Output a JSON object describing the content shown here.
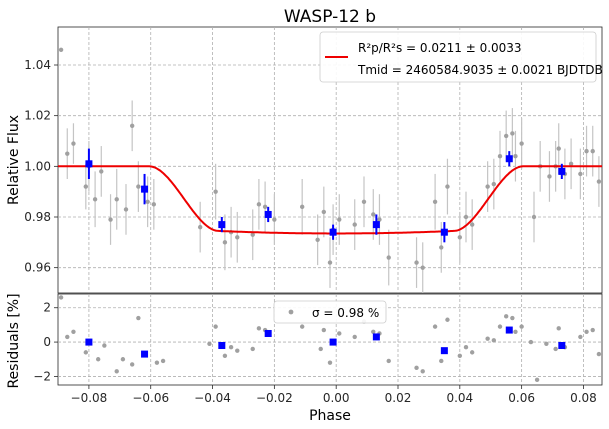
{
  "chart_data": [
    {
      "type": "scatter",
      "panel": "light-curve",
      "title": "WASP-12 b",
      "xlabel": "",
      "ylabel": "Relative Flux",
      "xlim": [
        -0.09,
        0.086
      ],
      "ylim": [
        0.95,
        1.055
      ],
      "yticks": [
        0.96,
        0.98,
        1.0,
        1.02,
        1.04
      ],
      "ytick_labels": [
        "0.96",
        "0.98",
        "1.00",
        "1.02",
        "1.04"
      ],
      "grid": true,
      "legend_position": "top-right",
      "legend": {
        "model_line_1": "R²p/R²s = 0.0211 ± 0.0033",
        "model_line_2": "Tmid = 2460584.9035 ± 0.0021 BJDTDB"
      },
      "colors": {
        "raw": "#a0a0a0",
        "binned": "#0000ff",
        "model": "#ee0000",
        "grid": "#b0b0b0"
      },
      "raw_points": [
        {
          "x": -0.089,
          "y": 1.046,
          "e": 0.0
        },
        {
          "x": -0.087,
          "y": 1.005,
          "e": 0.01
        },
        {
          "x": -0.085,
          "y": 1.009,
          "e": 0.008
        },
        {
          "x": -0.081,
          "y": 0.992,
          "e": 0.009
        },
        {
          "x": -0.08,
          "y": 1.0,
          "e": 0.01
        },
        {
          "x": -0.078,
          "y": 0.987,
          "e": 0.011
        },
        {
          "x": -0.076,
          "y": 0.998,
          "e": 0.01
        },
        {
          "x": -0.073,
          "y": 0.979,
          "e": 0.01
        },
        {
          "x": -0.071,
          "y": 0.987,
          "e": 0.012
        },
        {
          "x": -0.068,
          "y": 0.983,
          "e": 0.01
        },
        {
          "x": -0.066,
          "y": 1.016,
          "e": 0.01
        },
        {
          "x": -0.064,
          "y": 0.992,
          "e": 0.01
        },
        {
          "x": -0.061,
          "y": 0.986,
          "e": 0.01
        },
        {
          "x": -0.059,
          "y": 0.985,
          "e": 0.01
        },
        {
          "x": -0.044,
          "y": 0.976,
          "e": 0.01
        },
        {
          "x": -0.039,
          "y": 0.99,
          "e": 0.011
        },
        {
          "x": -0.036,
          "y": 0.97,
          "e": 0.011
        },
        {
          "x": -0.034,
          "y": 0.974,
          "e": 0.01
        },
        {
          "x": -0.032,
          "y": 0.972,
          "e": 0.01
        },
        {
          "x": -0.027,
          "y": 0.973,
          "e": 0.01
        },
        {
          "x": -0.025,
          "y": 0.985,
          "e": 0.01
        },
        {
          "x": -0.023,
          "y": 0.984,
          "e": 0.01
        },
        {
          "x": -0.02,
          "y": 0.979,
          "e": 0.01
        },
        {
          "x": -0.011,
          "y": 0.984,
          "e": 0.011
        },
        {
          "x": -0.006,
          "y": 0.971,
          "e": 0.01
        },
        {
          "x": -0.004,
          "y": 0.982,
          "e": 0.01
        },
        {
          "x": -0.002,
          "y": 0.962,
          "e": 0.01
        },
        {
          "x": -0.001,
          "y": 0.975,
          "e": 0.01
        },
        {
          "x": 0.001,
          "y": 0.979,
          "e": 0.01
        },
        {
          "x": 0.006,
          "y": 0.977,
          "e": 0.01
        },
        {
          "x": 0.009,
          "y": 0.986,
          "e": 0.01
        },
        {
          "x": 0.012,
          "y": 0.981,
          "e": 0.01
        },
        {
          "x": 0.014,
          "y": 0.979,
          "e": 0.01
        },
        {
          "x": 0.017,
          "y": 0.964,
          "e": 0.011
        },
        {
          "x": 0.026,
          "y": 0.962,
          "e": 0.01
        },
        {
          "x": 0.028,
          "y": 0.96,
          "e": 0.01
        },
        {
          "x": 0.032,
          "y": 0.986,
          "e": 0.011
        },
        {
          "x": 0.034,
          "y": 0.968,
          "e": 0.01
        },
        {
          "x": 0.036,
          "y": 0.992,
          "e": 0.011
        },
        {
          "x": 0.04,
          "y": 0.972,
          "e": 0.01
        },
        {
          "x": 0.042,
          "y": 0.98,
          "e": 0.01
        },
        {
          "x": 0.044,
          "y": 0.977,
          "e": 0.01
        },
        {
          "x": 0.049,
          "y": 0.992,
          "e": 0.01
        },
        {
          "x": 0.051,
          "y": 0.993,
          "e": 0.01
        },
        {
          "x": 0.053,
          "y": 1.004,
          "e": 0.01
        },
        {
          "x": 0.055,
          "y": 1.012,
          "e": 0.01
        },
        {
          "x": 0.057,
          "y": 1.013,
          "e": 0.01
        },
        {
          "x": 0.058,
          "y": 1.004,
          "e": 0.01
        },
        {
          "x": 0.06,
          "y": 1.009,
          "e": 0.01
        },
        {
          "x": 0.064,
          "y": 0.98,
          "e": 0.01
        },
        {
          "x": 0.066,
          "y": 1.0,
          "e": 0.01
        },
        {
          "x": 0.069,
          "y": 0.996,
          "e": 0.01
        },
        {
          "x": 0.071,
          "y": 1.0,
          "e": 0.01
        },
        {
          "x": 0.072,
          "y": 1.007,
          "e": 0.01
        },
        {
          "x": 0.074,
          "y": 0.997,
          "e": 0.01
        },
        {
          "x": 0.076,
          "y": 1.001,
          "e": 0.01
        },
        {
          "x": 0.079,
          "y": 0.997,
          "e": 0.01
        },
        {
          "x": 0.081,
          "y": 1.006,
          "e": 0.01
        },
        {
          "x": 0.083,
          "y": 1.006,
          "e": 0.01
        },
        {
          "x": 0.085,
          "y": 0.994,
          "e": 0.01
        }
      ],
      "binned_points": [
        {
          "x": -0.08,
          "y": 1.001,
          "e": 0.006
        },
        {
          "x": -0.062,
          "y": 0.991,
          "e": 0.006
        },
        {
          "x": -0.037,
          "y": 0.977,
          "e": 0.003
        },
        {
          "x": -0.022,
          "y": 0.981,
          "e": 0.003
        },
        {
          "x": -0.001,
          "y": 0.974,
          "e": 0.003
        },
        {
          "x": 0.013,
          "y": 0.977,
          "e": 0.004
        },
        {
          "x": 0.035,
          "y": 0.974,
          "e": 0.004
        },
        {
          "x": 0.056,
          "y": 1.003,
          "e": 0.003
        },
        {
          "x": 0.073,
          "y": 0.998,
          "e": 0.003
        }
      ],
      "model": {
        "baseline": 1.0,
        "depth": 0.0255,
        "t1": -0.0605,
        "t2": -0.038,
        "t3": 0.038,
        "t4": 0.0605,
        "curvature": 0.001
      }
    },
    {
      "type": "scatter",
      "panel": "residuals",
      "title": "",
      "xlabel": "Phase",
      "ylabel": "Residuals [%]",
      "xlim": [
        -0.09,
        0.086
      ],
      "ylim": [
        -2.5,
        2.8
      ],
      "xticks": [
        -0.08,
        -0.06,
        -0.04,
        -0.02,
        0.0,
        0.02,
        0.04,
        0.06,
        0.08
      ],
      "xtick_labels": [
        "−0.08",
        "−0.06",
        "−0.04",
        "−0.02",
        "0.00",
        "0.02",
        "0.04",
        "0.06",
        "0.08"
      ],
      "yticks": [
        -2,
        0,
        2
      ],
      "ytick_labels": [
        "−2",
        "0",
        "2"
      ],
      "grid": true,
      "legend_position": "top-center",
      "legend": {
        "sigma_label": "σ = 0.98 %"
      },
      "raw_points": [
        {
          "x": -0.089,
          "y": 2.6
        },
        {
          "x": -0.087,
          "y": 0.3
        },
        {
          "x": -0.085,
          "y": 0.6
        },
        {
          "x": -0.081,
          "y": -0.6
        },
        {
          "x": -0.08,
          "y": 0.0
        },
        {
          "x": -0.077,
          "y": -1.0
        },
        {
          "x": -0.075,
          "y": -0.2
        },
        {
          "x": -0.071,
          "y": -1.7
        },
        {
          "x": -0.069,
          "y": -1.0
        },
        {
          "x": -0.066,
          "y": -1.3
        },
        {
          "x": -0.064,
          "y": 1.4
        },
        {
          "x": -0.062,
          "y": -0.7
        },
        {
          "x": -0.058,
          "y": -1.2
        },
        {
          "x": -0.056,
          "y": -1.1
        },
        {
          "x": -0.041,
          "y": -0.1
        },
        {
          "x": -0.039,
          "y": 0.9
        },
        {
          "x": -0.036,
          "y": -0.8
        },
        {
          "x": -0.034,
          "y": -0.3
        },
        {
          "x": -0.032,
          "y": -0.5
        },
        {
          "x": -0.027,
          "y": -0.4
        },
        {
          "x": -0.025,
          "y": 0.8
        },
        {
          "x": -0.023,
          "y": 0.7
        },
        {
          "x": -0.011,
          "y": 0.9
        },
        {
          "x": -0.005,
          "y": -0.4
        },
        {
          "x": -0.004,
          "y": 0.7
        },
        {
          "x": -0.002,
          "y": -1.2
        },
        {
          "x": 0.001,
          "y": 0.5
        },
        {
          "x": 0.006,
          "y": 0.3
        },
        {
          "x": 0.009,
          "y": 1.2
        },
        {
          "x": 0.012,
          "y": 0.6
        },
        {
          "x": 0.014,
          "y": 0.5
        },
        {
          "x": 0.017,
          "y": -1.1
        },
        {
          "x": 0.026,
          "y": -1.5
        },
        {
          "x": 0.028,
          "y": -1.7
        },
        {
          "x": 0.032,
          "y": 0.9
        },
        {
          "x": 0.034,
          "y": -1.1
        },
        {
          "x": 0.036,
          "y": 1.3
        },
        {
          "x": 0.04,
          "y": -0.8
        },
        {
          "x": 0.042,
          "y": -0.3
        },
        {
          "x": 0.044,
          "y": -0.6
        },
        {
          "x": 0.049,
          "y": 0.2
        },
        {
          "x": 0.051,
          "y": 0.1
        },
        {
          "x": 0.053,
          "y": 0.9
        },
        {
          "x": 0.055,
          "y": 1.5
        },
        {
          "x": 0.057,
          "y": 1.4
        },
        {
          "x": 0.058,
          "y": 0.6
        },
        {
          "x": 0.06,
          "y": 0.9
        },
        {
          "x": 0.063,
          "y": 0.0
        },
        {
          "x": 0.065,
          "y": -2.2
        },
        {
          "x": 0.068,
          "y": -0.1
        },
        {
          "x": 0.071,
          "y": -0.4
        },
        {
          "x": 0.072,
          "y": 0.8
        },
        {
          "x": 0.074,
          "y": -0.3
        },
        {
          "x": 0.079,
          "y": 0.3
        },
        {
          "x": 0.081,
          "y": 0.6
        },
        {
          "x": 0.083,
          "y": 0.7
        },
        {
          "x": 0.085,
          "y": -0.7
        }
      ],
      "binned_points": [
        {
          "x": -0.08,
          "y": 0.0
        },
        {
          "x": -0.062,
          "y": -0.7
        },
        {
          "x": -0.037,
          "y": -0.2
        },
        {
          "x": -0.022,
          "y": 0.5
        },
        {
          "x": -0.001,
          "y": 0.0
        },
        {
          "x": 0.013,
          "y": 0.3
        },
        {
          "x": 0.035,
          "y": -0.5
        },
        {
          "x": 0.056,
          "y": 0.7
        },
        {
          "x": 0.073,
          "y": -0.2
        }
      ]
    }
  ]
}
